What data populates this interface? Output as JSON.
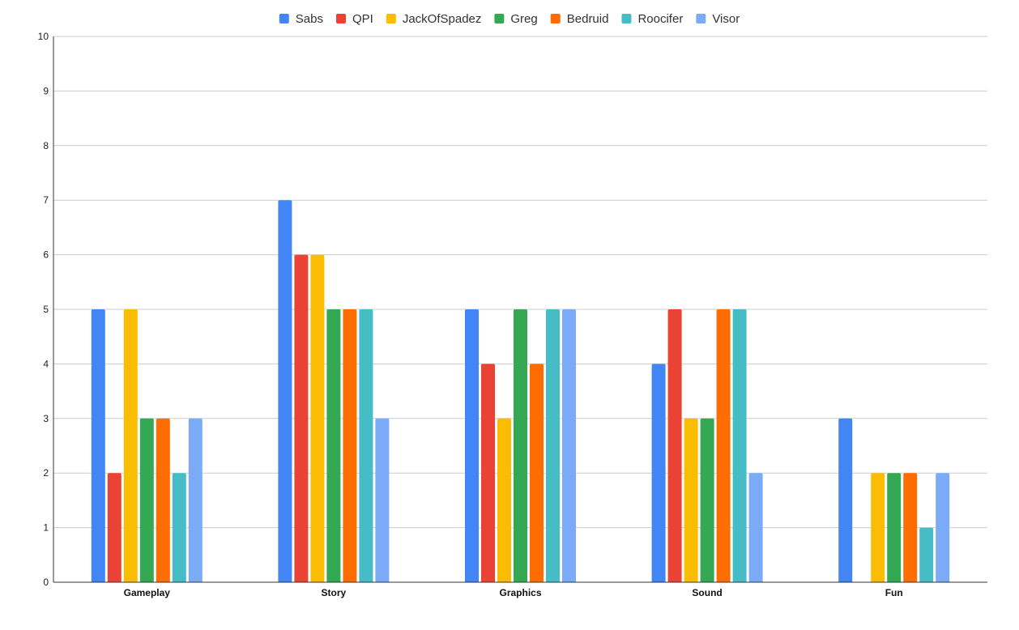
{
  "chart_data": {
    "type": "bar",
    "categories": [
      "Gameplay",
      "Story",
      "Graphics",
      "Sound",
      "Fun"
    ],
    "series": [
      {
        "name": "Sabs",
        "color": "#4285f4",
        "values": [
          5,
          7,
          5,
          4,
          3
        ]
      },
      {
        "name": "QPI",
        "color": "#ea4335",
        "values": [
          2,
          6,
          4,
          5,
          0
        ]
      },
      {
        "name": "JackOfSpadez",
        "color": "#fbbc04",
        "values": [
          5,
          6,
          3,
          3,
          2
        ]
      },
      {
        "name": "Greg",
        "color": "#34a853",
        "values": [
          3,
          5,
          5,
          3,
          2
        ]
      },
      {
        "name": "Bedruid",
        "color": "#ff6d01",
        "values": [
          3,
          5,
          4,
          5,
          2
        ]
      },
      {
        "name": "Roocifer",
        "color": "#46bdc6",
        "values": [
          2,
          5,
          5,
          5,
          1
        ]
      },
      {
        "name": "Visor",
        "color": "#7baaf7",
        "values": [
          3,
          3,
          5,
          2,
          2
        ]
      }
    ],
    "ylim": [
      0,
      10
    ],
    "yticks": [
      0,
      1,
      2,
      3,
      4,
      5,
      6,
      7,
      8,
      9,
      10
    ],
    "grid": true,
    "legend_position": "top-center",
    "title": "",
    "xlabel": "",
    "ylabel": ""
  }
}
